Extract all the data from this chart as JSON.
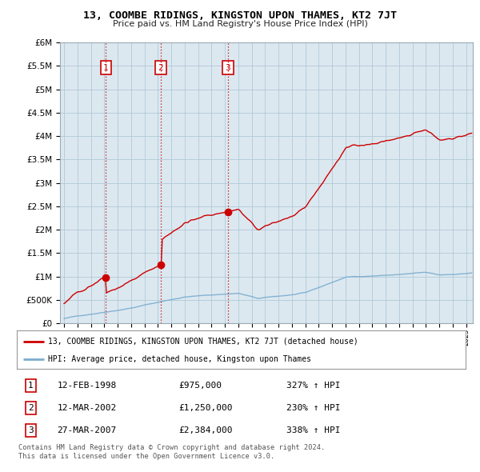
{
  "title": "13, COOMBE RIDINGS, KINGSTON UPON THAMES, KT2 7JT",
  "subtitle": "Price paid vs. HM Land Registry's House Price Index (HPI)",
  "legend_label_red": "13, COOMBE RIDINGS, KINGSTON UPON THAMES, KT2 7JT (detached house)",
  "legend_label_blue": "HPI: Average price, detached house, Kingston upon Thames",
  "sale_labels": [
    {
      "num": 1,
      "date": "12-FEB-1998",
      "price": "£975,000",
      "hpi": "327% ↑ HPI"
    },
    {
      "num": 2,
      "date": "12-MAR-2002",
      "price": "£1,250,000",
      "hpi": "230% ↑ HPI"
    },
    {
      "num": 3,
      "date": "27-MAR-2007",
      "price": "£2,384,000",
      "hpi": "338% ↑ HPI"
    }
  ],
  "footnote1": "Contains HM Land Registry data © Crown copyright and database right 2024.",
  "footnote2": "This data is licensed under the Open Government Licence v3.0.",
  "sale_years": [
    1998.12,
    2002.21,
    2007.24
  ],
  "sale_prices": [
    975000,
    1250000,
    2384000
  ],
  "hpi_color": "#7aadcf",
  "price_color": "#cc0000",
  "marker_box_color": "#cc0000",
  "background_color": "#ffffff",
  "chart_bg_color": "#dce8f0",
  "grid_color": "#b0c8d8",
  "ylim": [
    0,
    6000000
  ],
  "xlim": [
    1994.7,
    2025.5
  ]
}
